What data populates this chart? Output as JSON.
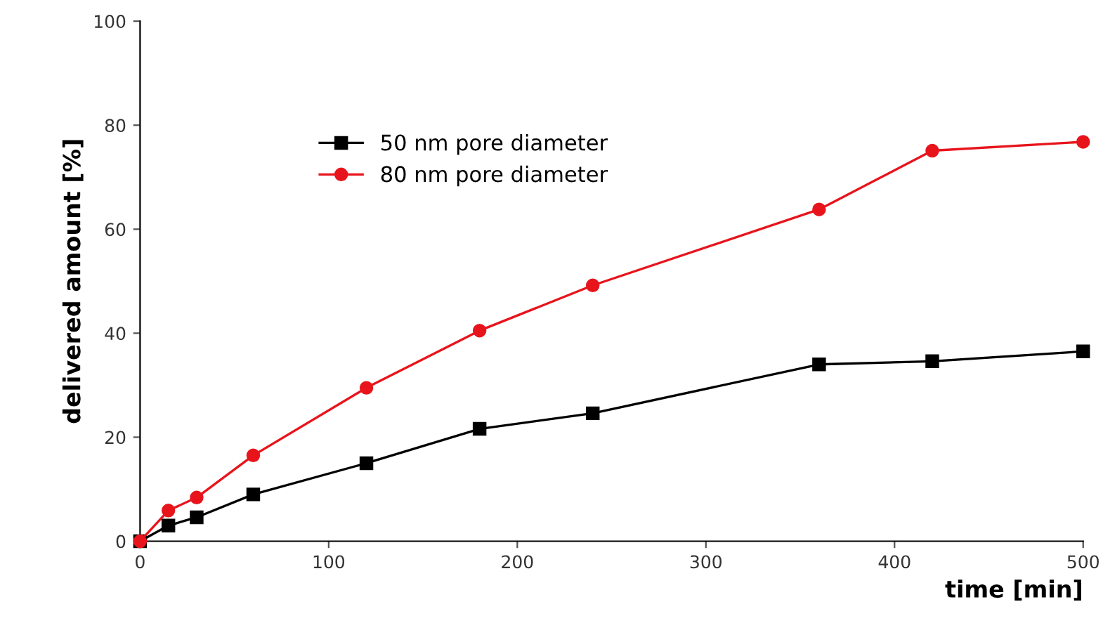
{
  "chart_data": {
    "type": "line",
    "xlabel": "time [min]",
    "ylabel": "delivered amount [%]",
    "x": [
      0,
      15,
      30,
      60,
      120,
      180,
      240,
      360,
      420,
      500
    ],
    "series": [
      {
        "name": "50 nm pore diameter",
        "color": "#000000",
        "marker": "square",
        "values": [
          0,
          3,
          4.6,
          9,
          15,
          21.6,
          24.6,
          34,
          34.6,
          36.5
        ]
      },
      {
        "name": "80 nm pore diameter",
        "color": "#e8141c",
        "marker": "circle",
        "values": [
          0,
          5.9,
          8.4,
          16.5,
          29.5,
          40.5,
          49.2,
          63.8,
          75.1,
          76.8
        ]
      }
    ],
    "xlim": [
      0,
      500
    ],
    "xticks": [
      0,
      100,
      200,
      300,
      400,
      500
    ],
    "ylim": [
      0,
      100
    ],
    "yticks": [
      0,
      20,
      40,
      60,
      80,
      100
    ],
    "grid": false,
    "legend": "top left",
    "line_style": "solid"
  }
}
